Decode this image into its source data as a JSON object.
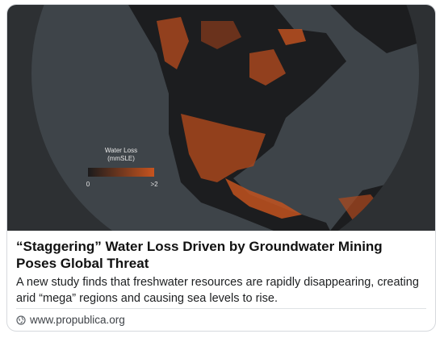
{
  "image": {
    "legend": {
      "title": "Water Loss",
      "unit": "(mmSLE)",
      "min_label": "0",
      "max_label": ">2"
    }
  },
  "title": "“Staggering” Water Loss Driven by Groundwater Mining Poses Global Threat",
  "description": "A new study finds that freshwater resources are rapidly disappearing, creating arid “mega” regions and causing sea levels to rise.",
  "site": "www.propublica.org"
}
